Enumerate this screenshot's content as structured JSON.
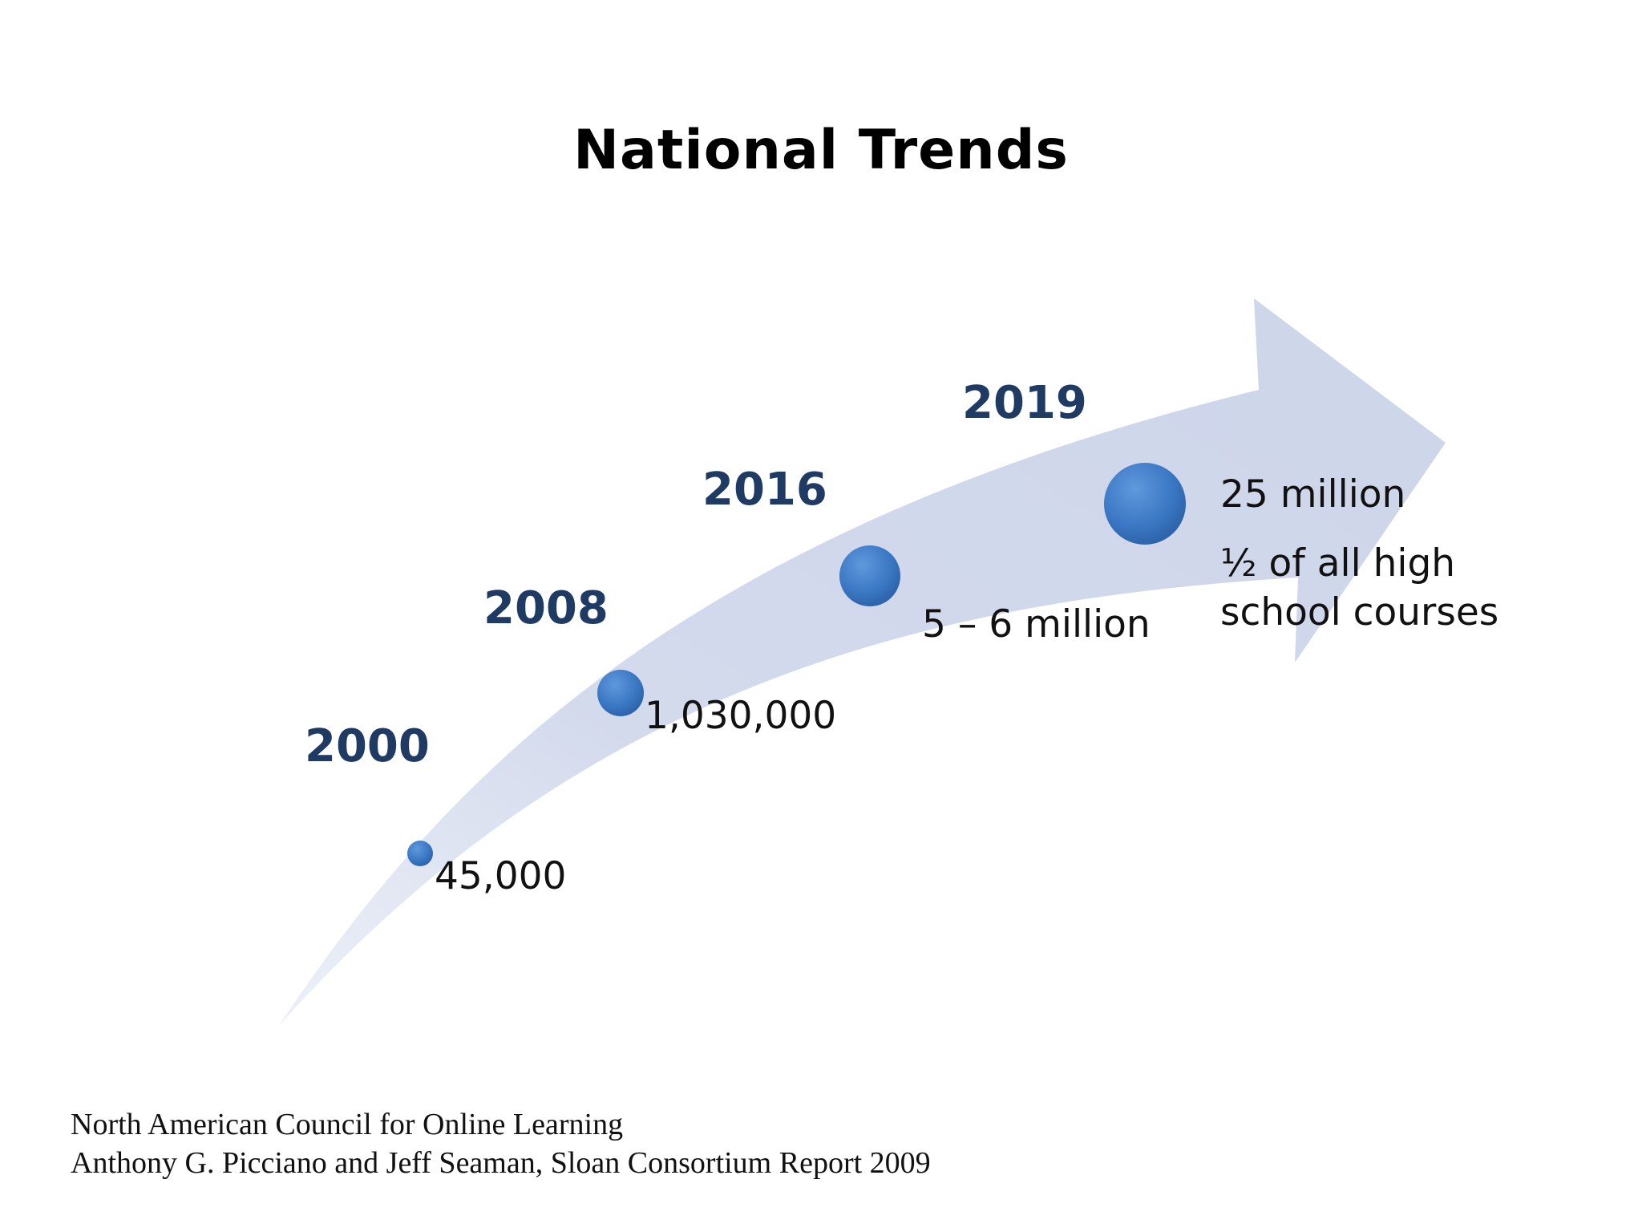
{
  "title": "National Trends",
  "colors": {
    "arrow_fill": "#cfd7ea",
    "year_text": "#1f3a63",
    "bubble": "#3b78c4"
  },
  "milestones": [
    {
      "year": "2000",
      "value": "45,000"
    },
    {
      "year": "2008",
      "value": "1,030,000"
    },
    {
      "year": "2016",
      "value": "5 – 6 million"
    },
    {
      "year": "2019",
      "value": "25 million",
      "note": "½ of all high school courses"
    }
  ],
  "source": {
    "line1": "North American Council for Online Learning",
    "line2": "Anthony G. Picciano and Jeff Seaman, Sloan Consortium Report 2009"
  }
}
